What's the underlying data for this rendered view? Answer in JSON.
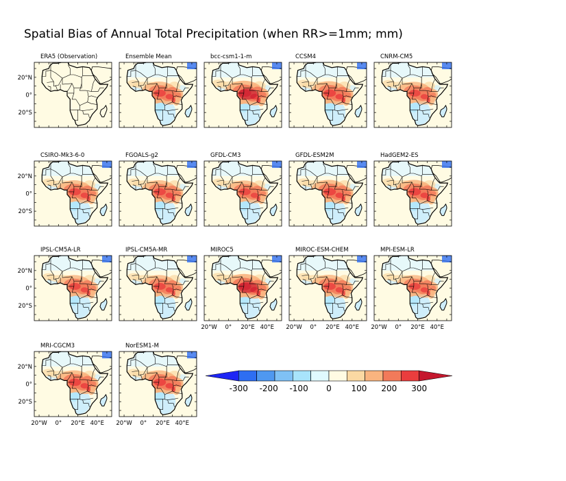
{
  "title": "Spatial Bias of Annual Total Precipitation (when RR>=1mm; mm)",
  "panels": [
    {
      "label": "ERA5 (Observation)",
      "style": "obs"
    },
    {
      "label": "Ensemble Mean",
      "style": "bias",
      "intensity": 0.75
    },
    {
      "label": "bcc-csm1-1-m",
      "style": "bias",
      "intensity": 1.0
    },
    {
      "label": "CCSM4",
      "style": "bias",
      "intensity": 0.85
    },
    {
      "label": "CNRM-CM5",
      "style": "bias",
      "intensity": 0.7
    },
    {
      "label": "CSIRO-Mk3-6-0",
      "style": "bias",
      "intensity": 0.75
    },
    {
      "label": "FGOALS-g2",
      "style": "bias",
      "intensity": 0.75
    },
    {
      "label": "GFDL-CM3",
      "style": "bias",
      "intensity": 0.7
    },
    {
      "label": "GFDL-ESM2M",
      "style": "bias",
      "intensity": 0.85
    },
    {
      "label": "HadGEM2-ES",
      "style": "bias",
      "intensity": 0.85
    },
    {
      "label": "IPSL-CM5A-LR",
      "style": "bias",
      "intensity": 0.7
    },
    {
      "label": "IPSL-CM5A-MR",
      "style": "bias",
      "intensity": 0.7
    },
    {
      "label": "MIROC5",
      "style": "bias",
      "intensity": 1.0
    },
    {
      "label": "MIROC-ESM-CHEM",
      "style": "bias",
      "intensity": 0.75
    },
    {
      "label": "MPI-ESM-LR",
      "style": "bias",
      "intensity": 0.7
    },
    {
      "label": "MRI-CGCM3",
      "style": "bias",
      "intensity": 0.85
    },
    {
      "label": "NorESM1-M",
      "style": "bias",
      "intensity": 0.85
    }
  ],
  "lat_ticks": [
    "20°N",
    "0°",
    "20°S"
  ],
  "lon_ticks": [
    "20°W",
    "0°",
    "20°E",
    "40°E"
  ],
  "colorbar": {
    "colors": [
      "#1e26f5",
      "#2e6ef2",
      "#4f98f0",
      "#7fc1f5",
      "#a8e4fb",
      "#e0faff",
      "#fffbe3",
      "#fbd9a3",
      "#f9b47f",
      "#f27a5a",
      "#ea3d3d",
      "#c5182e"
    ],
    "tick_labels": [
      "-300",
      "-200",
      "-100",
      "0",
      "100",
      "200",
      "300"
    ],
    "tick_values": [
      -300,
      -200,
      -100,
      0,
      100,
      200,
      300
    ]
  },
  "colors": {
    "land_base": "#fffbe3",
    "ocean": "#ffffff",
    "border": "#000000",
    "dry_bias": "#cfeefb",
    "north_africa": "#e4f7fc"
  }
}
